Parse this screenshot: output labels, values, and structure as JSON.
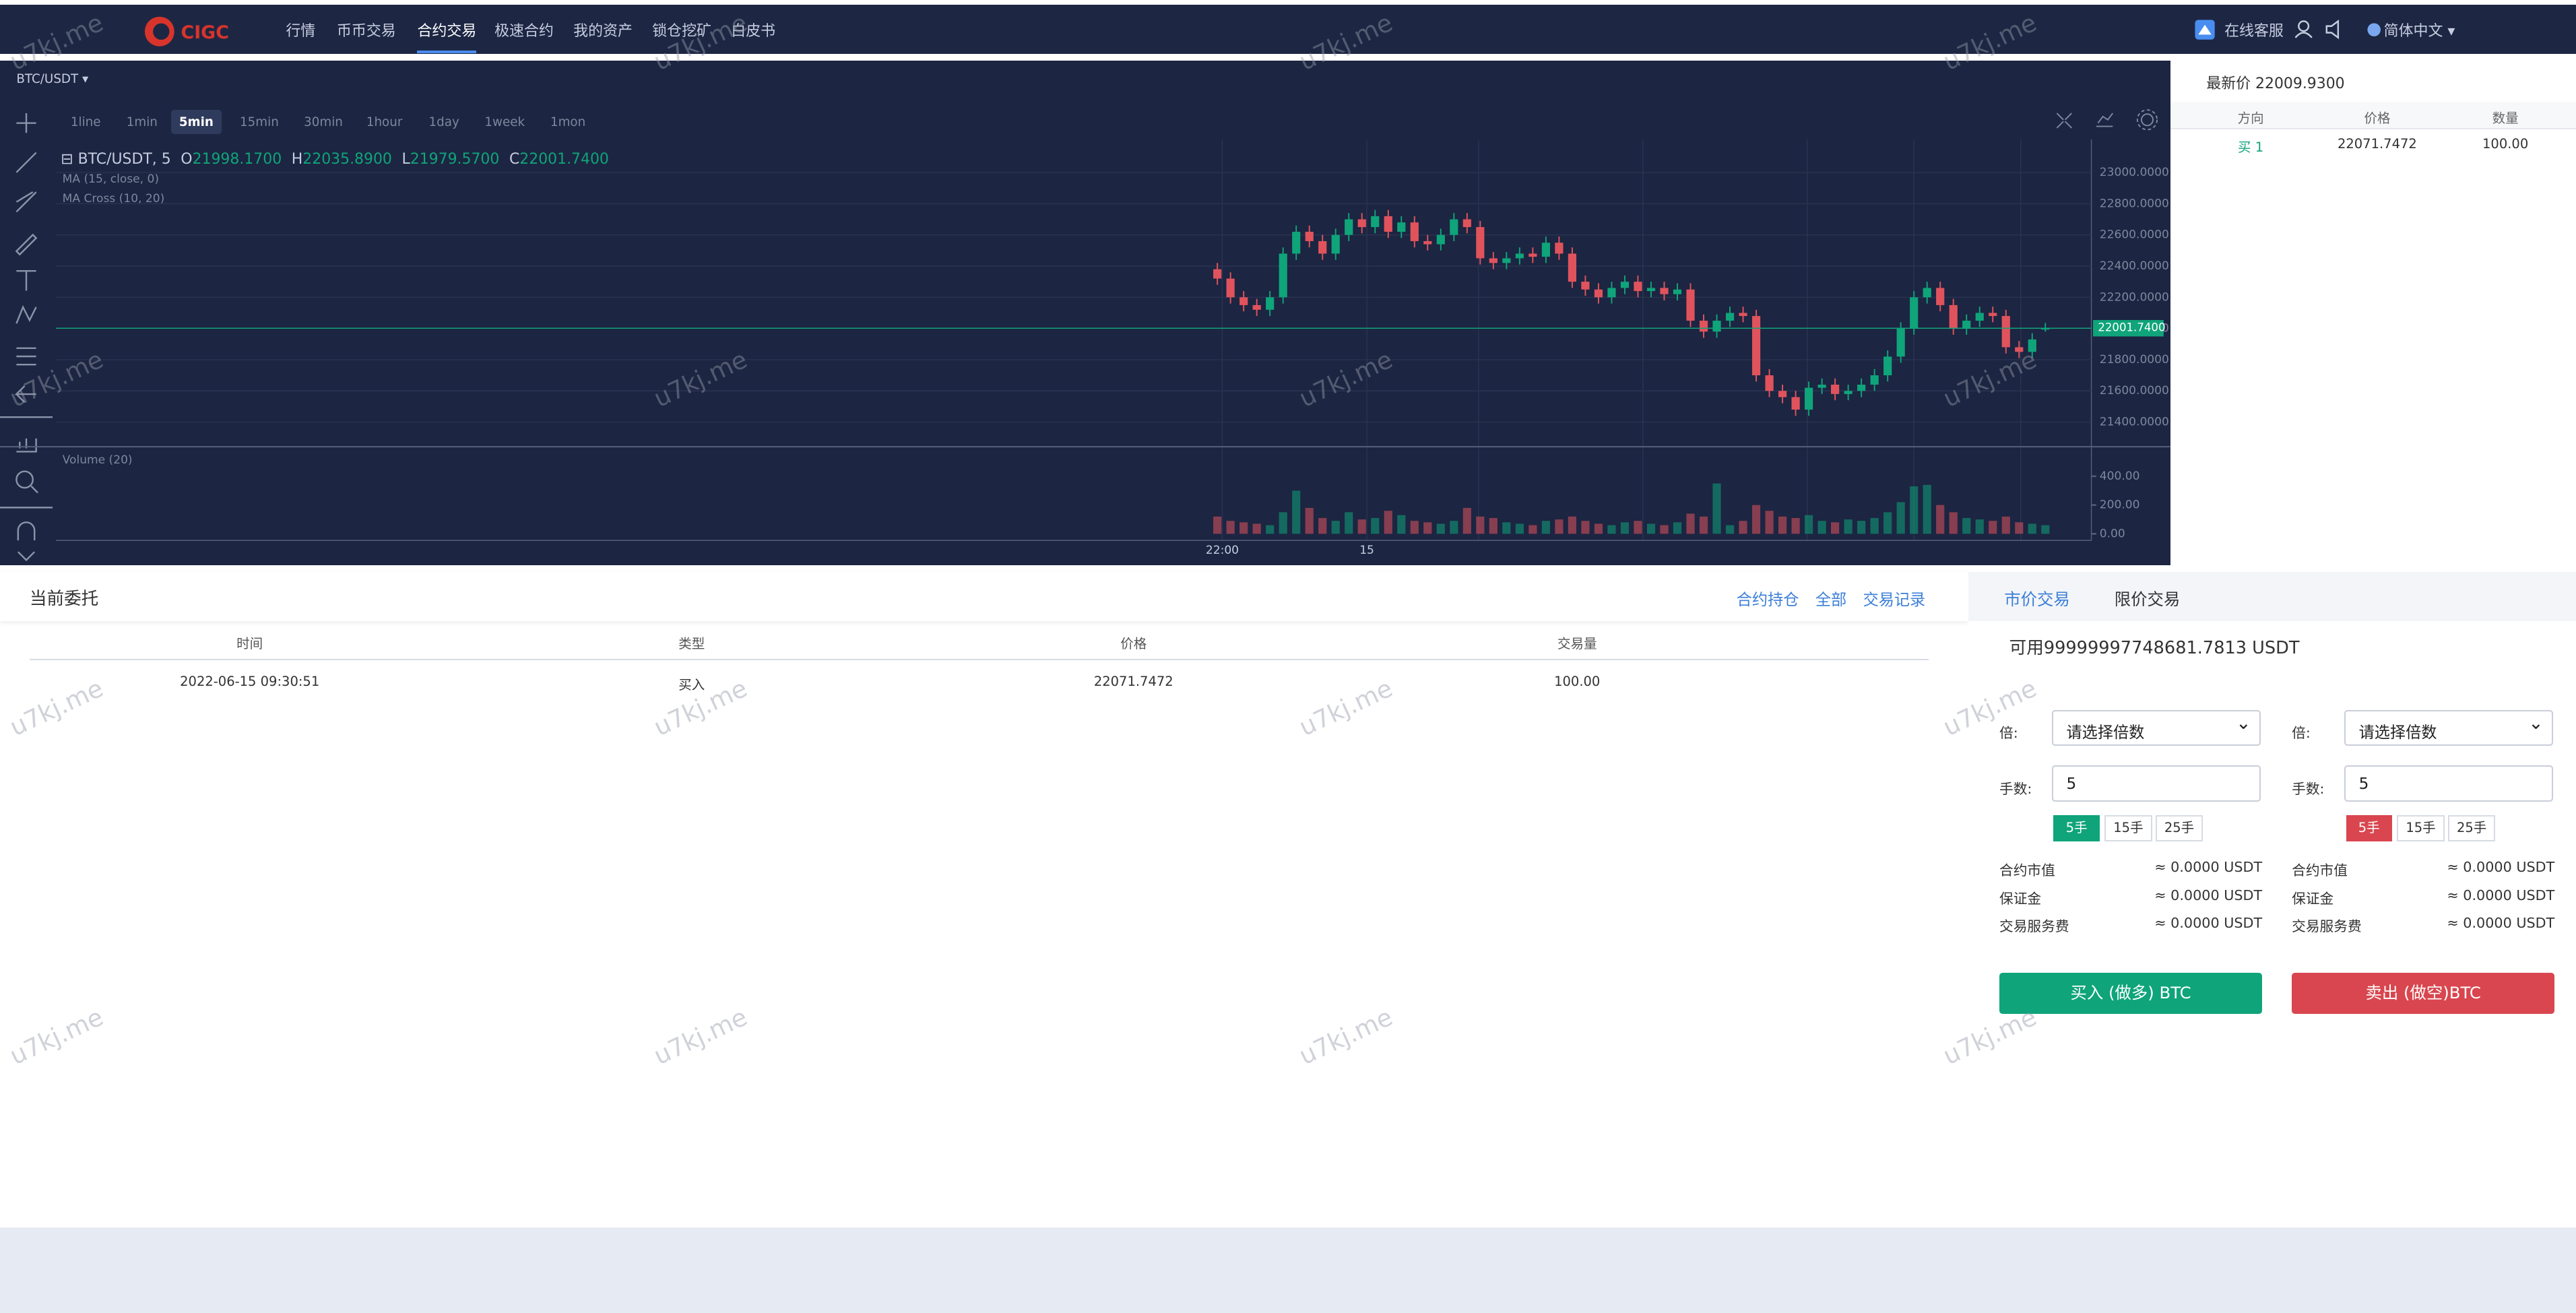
{
  "nav": {
    "logo": "CIGC",
    "menu": [
      "行情",
      "币币交易",
      "合约交易",
      "极速合约",
      "我的资产",
      "锁仓挖矿",
      "白皮书"
    ],
    "service": "在线客服",
    "language": "简体中文"
  },
  "watermark": "u7kj.me",
  "chart_data": {
    "type": "candlestick",
    "symbol": "BTC/USDT",
    "title": "BTC/USDT, 5",
    "intervals": [
      "1line",
      "1min",
      "5min",
      "15min",
      "30min",
      "1hour",
      "1day",
      "1week",
      "1mon"
    ],
    "ohlc": [
      {
        "label": "O",
        "value": "21998.1700"
      },
      {
        "label": "H",
        "value": "22035.8900"
      },
      {
        "label": "L",
        "value": "21979.5700"
      },
      {
        "label": "C",
        "value": "22001.7400"
      }
    ],
    "indicators": [
      "MA (15, close, 0)",
      "MA Cross (10, 20)"
    ],
    "volume_title": "Volume (20)",
    "up_color": "#0fa47a",
    "down_color": "#e0535d",
    "categories": [
      "22:00",
      null,
      null,
      null,
      null,
      null,
      null,
      null,
      null,
      null,
      null,
      "15",
      null,
      null,
      null,
      null,
      null,
      null,
      null,
      null,
      null,
      null,
      null,
      null,
      null,
      null,
      null,
      null,
      null,
      null,
      null,
      null,
      null,
      null,
      null,
      null,
      null,
      null,
      null,
      null,
      null,
      null,
      null,
      null,
      null,
      null,
      null,
      null,
      null,
      null,
      null,
      null,
      null,
      null,
      null,
      null,
      null,
      null,
      null,
      null,
      null,
      null,
      null,
      null
    ],
    "open": [
      22380,
      22320,
      22200,
      22150,
      22120,
      22200,
      22480,
      22620,
      22560,
      22480,
      22600,
      22700,
      22650,
      22720,
      22620,
      22680,
      22560,
      22540,
      22600,
      22700,
      22650,
      22450,
      22420,
      22450,
      22480,
      22460,
      22550,
      22480,
      22300,
      22250,
      22200,
      22260,
      22300,
      22240,
      22260,
      22220,
      22250,
      22050,
      21980,
      22050,
      22100,
      22080,
      21700,
      21600,
      21560,
      21480,
      21620,
      21640,
      21580,
      21600,
      21640,
      21700,
      21820,
      22000,
      22200,
      22260,
      22150,
      22000,
      22050,
      22100,
      22080,
      21880,
      21850,
      21998.17
    ],
    "high": [
      22420,
      22360,
      22240,
      22190,
      22240,
      22520,
      22660,
      22660,
      22600,
      22640,
      22740,
      22740,
      22760,
      22760,
      22720,
      22720,
      22600,
      22640,
      22740,
      22740,
      22690,
      22490,
      22490,
      22520,
      22520,
      22590,
      22590,
      22520,
      22340,
      22290,
      22300,
      22340,
      22340,
      22300,
      22300,
      22290,
      22290,
      22090,
      22090,
      22140,
      22140,
      22120,
      21740,
      21640,
      21600,
      21660,
      21680,
      21680,
      21640,
      21680,
      21740,
      21860,
      22040,
      22240,
      22300,
      22300,
      22190,
      22090,
      22140,
      22140,
      22120,
      21920,
      21970,
      22035.89
    ],
    "low": [
      22280,
      22160,
      22110,
      22080,
      22080,
      22160,
      22440,
      22520,
      22440,
      22440,
      22560,
      22610,
      22610,
      22580,
      22580,
      22520,
      22500,
      22500,
      22560,
      22610,
      22410,
      22380,
      22380,
      22410,
      22420,
      22420,
      22440,
      22260,
      22210,
      22160,
      22160,
      22220,
      22200,
      22200,
      22180,
      22180,
      22010,
      21940,
      21940,
      22010,
      22040,
      21660,
      21560,
      21520,
      21440,
      21440,
      21580,
      21540,
      21540,
      21560,
      21600,
      21660,
      21780,
      21960,
      22160,
      22110,
      21960,
      21960,
      22010,
      22040,
      21840,
      21810,
      21810,
      21979.57
    ],
    "close": [
      22320,
      22200,
      22150,
      22120,
      22200,
      22480,
      22620,
      22560,
      22480,
      22600,
      22700,
      22650,
      22720,
      22620,
      22680,
      22560,
      22540,
      22600,
      22700,
      22650,
      22450,
      22420,
      22450,
      22480,
      22460,
      22550,
      22480,
      22300,
      22250,
      22200,
      22260,
      22300,
      22240,
      22260,
      22220,
      22250,
      22050,
      21980,
      22050,
      22100,
      22080,
      21700,
      21600,
      21560,
      21480,
      21620,
      21640,
      21580,
      21600,
      21640,
      21700,
      21820,
      22000,
      22200,
      22260,
      22150,
      22000,
      22050,
      22100,
      22080,
      21880,
      21850,
      21930,
      22001.74
    ],
    "volume": [
      120,
      90,
      80,
      70,
      60,
      150,
      300,
      180,
      110,
      90,
      150,
      100,
      110,
      160,
      130,
      90,
      80,
      70,
      90,
      180,
      120,
      110,
      80,
      70,
      60,
      90,
      100,
      120,
      90,
      70,
      60,
      80,
      90,
      70,
      60,
      80,
      140,
      120,
      350,
      60,
      90,
      200,
      160,
      120,
      110,
      130,
      90,
      80,
      100,
      90,
      110,
      150,
      220,
      330,
      340,
      200,
      150,
      110,
      100,
      90,
      120,
      80,
      70,
      60
    ],
    "ylim": [
      21270,
      23180
    ],
    "yticks": [
      {
        "value": 21400,
        "label": "21400.0000"
      },
      {
        "value": 21600,
        "label": "21600.0000"
      },
      {
        "value": 21800,
        "label": "21800.0000"
      },
      {
        "value": 22000,
        "label": "22000.0000"
      },
      {
        "value": 22200,
        "label": "22200.0000"
      },
      {
        "value": 22400,
        "label": "22400.0000"
      },
      {
        "value": 22600,
        "label": "22600.0000"
      },
      {
        "value": 22800,
        "label": "22800.0000"
      },
      {
        "value": 23000,
        "label": "23000.0000"
      }
    ],
    "volume_ylim": [
      0,
      570
    ],
    "volume_yticks": [
      {
        "value": 0,
        "label": "0.00"
      },
      {
        "value": 200,
        "label": "200.00"
      },
      {
        "value": 400,
        "label": "400.00"
      }
    ],
    "last_price": {
      "value": 22001.74,
      "label": "22001.7400"
    },
    "grid": true
  },
  "order_book": {
    "latest": "最新价 22009.9300",
    "headers": [
      "方向",
      "价格",
      "数量"
    ],
    "rows": [
      [
        "买 1",
        "22071.7472",
        "100.00"
      ]
    ]
  },
  "orders": {
    "title": "当前委托",
    "tabs": [
      "合约持仓",
      "全部",
      "交易记录"
    ],
    "headers": [
      "时间",
      "类型",
      "价格",
      "交易量"
    ],
    "rows": [
      [
        "2022-06-15 09:30:51",
        "买入",
        "22071.7472",
        "100.00"
      ]
    ]
  },
  "trade": {
    "tabs": [
      "市价交易",
      "限价交易"
    ],
    "available": "可用99999997748681.7813 USDT",
    "columns": [
      {
        "leverage_label": "倍:",
        "leverage_placeholder": "请选择倍数",
        "lots_label": "手数:",
        "lots": "5",
        "quick": [
          "5手",
          "15手",
          "25手"
        ],
        "info": [
          [
            "合约市值",
            "≈ 0.0000 USDT"
          ],
          [
            "保证金",
            "≈ 0.0000 USDT"
          ],
          [
            "交易服务费",
            "≈ 0.0000 USDT"
          ]
        ],
        "button": "买入 (做多) BTC"
      },
      {
        "leverage_label": "倍:",
        "leverage_placeholder": "请选择倍数",
        "lots_label": "手数:",
        "lots": "5",
        "quick": [
          "5手",
          "15手",
          "25手"
        ],
        "info": [
          [
            "合约市值",
            "≈ 0.0000 USDT"
          ],
          [
            "保证金",
            "≈ 0.0000 USDT"
          ],
          [
            "交易服务费",
            "≈ 0.0000 USDT"
          ]
        ],
        "button": "卖出 (做空)BTC"
      }
    ]
  }
}
